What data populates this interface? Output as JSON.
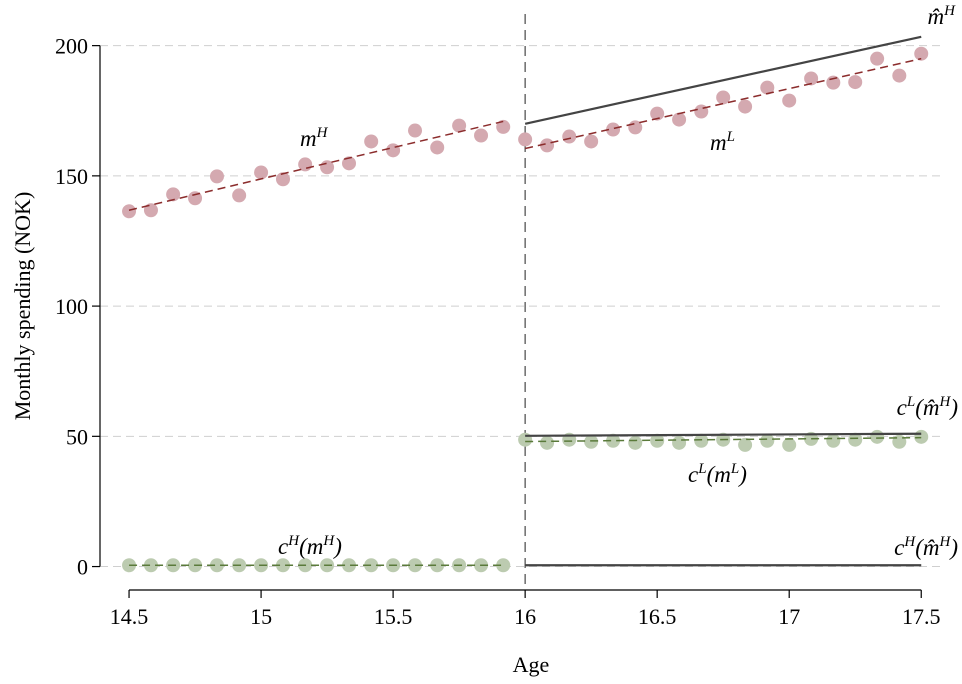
{
  "chart_data": {
    "type": "scatter",
    "xlabel": "Age",
    "ylabel": "Monthly spending (NOK)",
    "xlim": [
      14.39,
      17.59
    ],
    "ylim": [
      -9,
      206
    ],
    "xticks": [
      14.5,
      15,
      15.5,
      16,
      16.5,
      17,
      17.5
    ],
    "yticks": [
      0,
      50,
      100,
      150,
      200
    ],
    "grid": true,
    "vline": 16,
    "series": [
      {
        "mode": "markers",
        "color": "#d4a9b0",
        "x": [
          14.5,
          14.583,
          14.667,
          14.75,
          14.833,
          14.917,
          15,
          15.083,
          15.167,
          15.25,
          15.333,
          15.417,
          15.5,
          15.583,
          15.667,
          15.75,
          15.833,
          15.917
        ],
        "values": [
          136.4,
          136.8,
          142.9,
          141.4,
          149.8,
          142.5,
          151.3,
          148.7,
          154.4,
          153.3,
          154.8,
          163.2,
          159.8,
          167.4,
          160.9,
          169.3,
          165.5,
          168.8
        ]
      },
      {
        "mode": "markers",
        "color": "#d4a9b0",
        "x": [
          16,
          16.083,
          16.167,
          16.25,
          16.333,
          16.417,
          16.5,
          16.583,
          16.667,
          16.75,
          16.833,
          16.917,
          17,
          17.083,
          17.167,
          17.25,
          17.333,
          17.417,
          17.5
        ],
        "values": [
          164.0,
          161.7,
          165.1,
          163.2,
          167.8,
          168.6,
          173.9,
          171.6,
          174.7,
          180.1,
          176.6,
          183.9,
          178.9,
          187.4,
          185.8,
          186.0,
          195.0,
          188.5,
          196.9
        ]
      },
      {
        "mode": "markers",
        "color": "#bccbb0",
        "x": [
          14.5,
          14.583,
          14.667,
          14.75,
          14.833,
          14.917,
          15,
          15.083,
          15.167,
          15.25,
          15.333,
          15.417,
          15.5,
          15.583,
          15.667,
          15.75,
          15.833,
          15.917
        ],
        "values": [
          0.5,
          0.5,
          0.5,
          0.5,
          0.5,
          0.5,
          0.5,
          0.5,
          0.5,
          0.5,
          0.5,
          0.5,
          0.5,
          0.5,
          0.5,
          0.5,
          0.5,
          0.5
        ]
      },
      {
        "mode": "markers",
        "color": "#bccbb0",
        "x": [
          16,
          16.083,
          16.167,
          16.25,
          16.333,
          16.417,
          16.5,
          16.583,
          16.667,
          16.75,
          16.833,
          16.917,
          17,
          17.083,
          17.167,
          17.25,
          17.333,
          17.417,
          17.5
        ],
        "values": [
          48.7,
          47.5,
          48.7,
          47.9,
          48.3,
          47.5,
          48.3,
          47.5,
          48.3,
          48.7,
          46.7,
          48.3,
          46.7,
          49.0,
          48.3,
          48.7,
          49.8,
          47.9,
          49.8
        ]
      },
      {
        "mode": "line",
        "dash": true,
        "color": "#8b2c2c",
        "x": [
          14.5,
          15.917
        ],
        "values": [
          136.8,
          170.9
        ]
      },
      {
        "mode": "line",
        "dash": true,
        "color": "#8b2c2c",
        "x": [
          16,
          17.5
        ],
        "values": [
          160.5,
          195
        ]
      },
      {
        "mode": "line",
        "dash": false,
        "color": "#444444",
        "x": [
          16,
          17.5
        ],
        "values": [
          170,
          203.4
        ]
      },
      {
        "mode": "line",
        "dash": false,
        "color": "#444444",
        "x": [
          16,
          17.5
        ],
        "values": [
          50.2,
          51
        ]
      },
      {
        "mode": "line",
        "dash": true,
        "color": "#5a7a3a",
        "x": [
          16,
          17.5
        ],
        "values": [
          48,
          49.5
        ]
      },
      {
        "mode": "line",
        "dash": true,
        "color": "#5a7a3a",
        "x": [
          14.5,
          15.917
        ],
        "values": [
          0.5,
          0.5
        ]
      },
      {
        "mode": "line",
        "dash": false,
        "color": "#444444",
        "x": [
          16,
          17.5
        ],
        "values": [
          0.5,
          0.5
        ]
      }
    ],
    "annotations": [
      {
        "color": "#8b2c2c",
        "parts": [
          {
            "text": "m"
          },
          {
            "sup": "H"
          }
        ]
      },
      {
        "color": "#8b2c2c",
        "parts": [
          {
            "text": "m"
          },
          {
            "sup": "L"
          }
        ]
      },
      {
        "color": "#555555",
        "parts": [
          {
            "text": "m̂"
          },
          {
            "sup": "H"
          }
        ]
      },
      {
        "color": "#555555",
        "parts": [
          {
            "text": "c"
          },
          {
            "sup": "L"
          },
          {
            "text": "(m̂"
          },
          {
            "sup": "H"
          },
          {
            "text": ")"
          }
        ]
      },
      {
        "color": "#5a7a3a",
        "parts": [
          {
            "text": "c"
          },
          {
            "sup": "L"
          },
          {
            "text": "(m"
          },
          {
            "sup": "L"
          },
          {
            "text": ")"
          }
        ]
      },
      {
        "color": "#5a7a3a",
        "parts": [
          {
            "text": "c"
          },
          {
            "sup": "H"
          },
          {
            "text": "(m"
          },
          {
            "sup": "H"
          },
          {
            "text": ")"
          }
        ]
      },
      {
        "color": "#555555",
        "parts": [
          {
            "text": "c"
          },
          {
            "sup": "H"
          },
          {
            "text": "(m̂"
          },
          {
            "sup": "H"
          },
          {
            "text": ")"
          }
        ]
      }
    ]
  }
}
